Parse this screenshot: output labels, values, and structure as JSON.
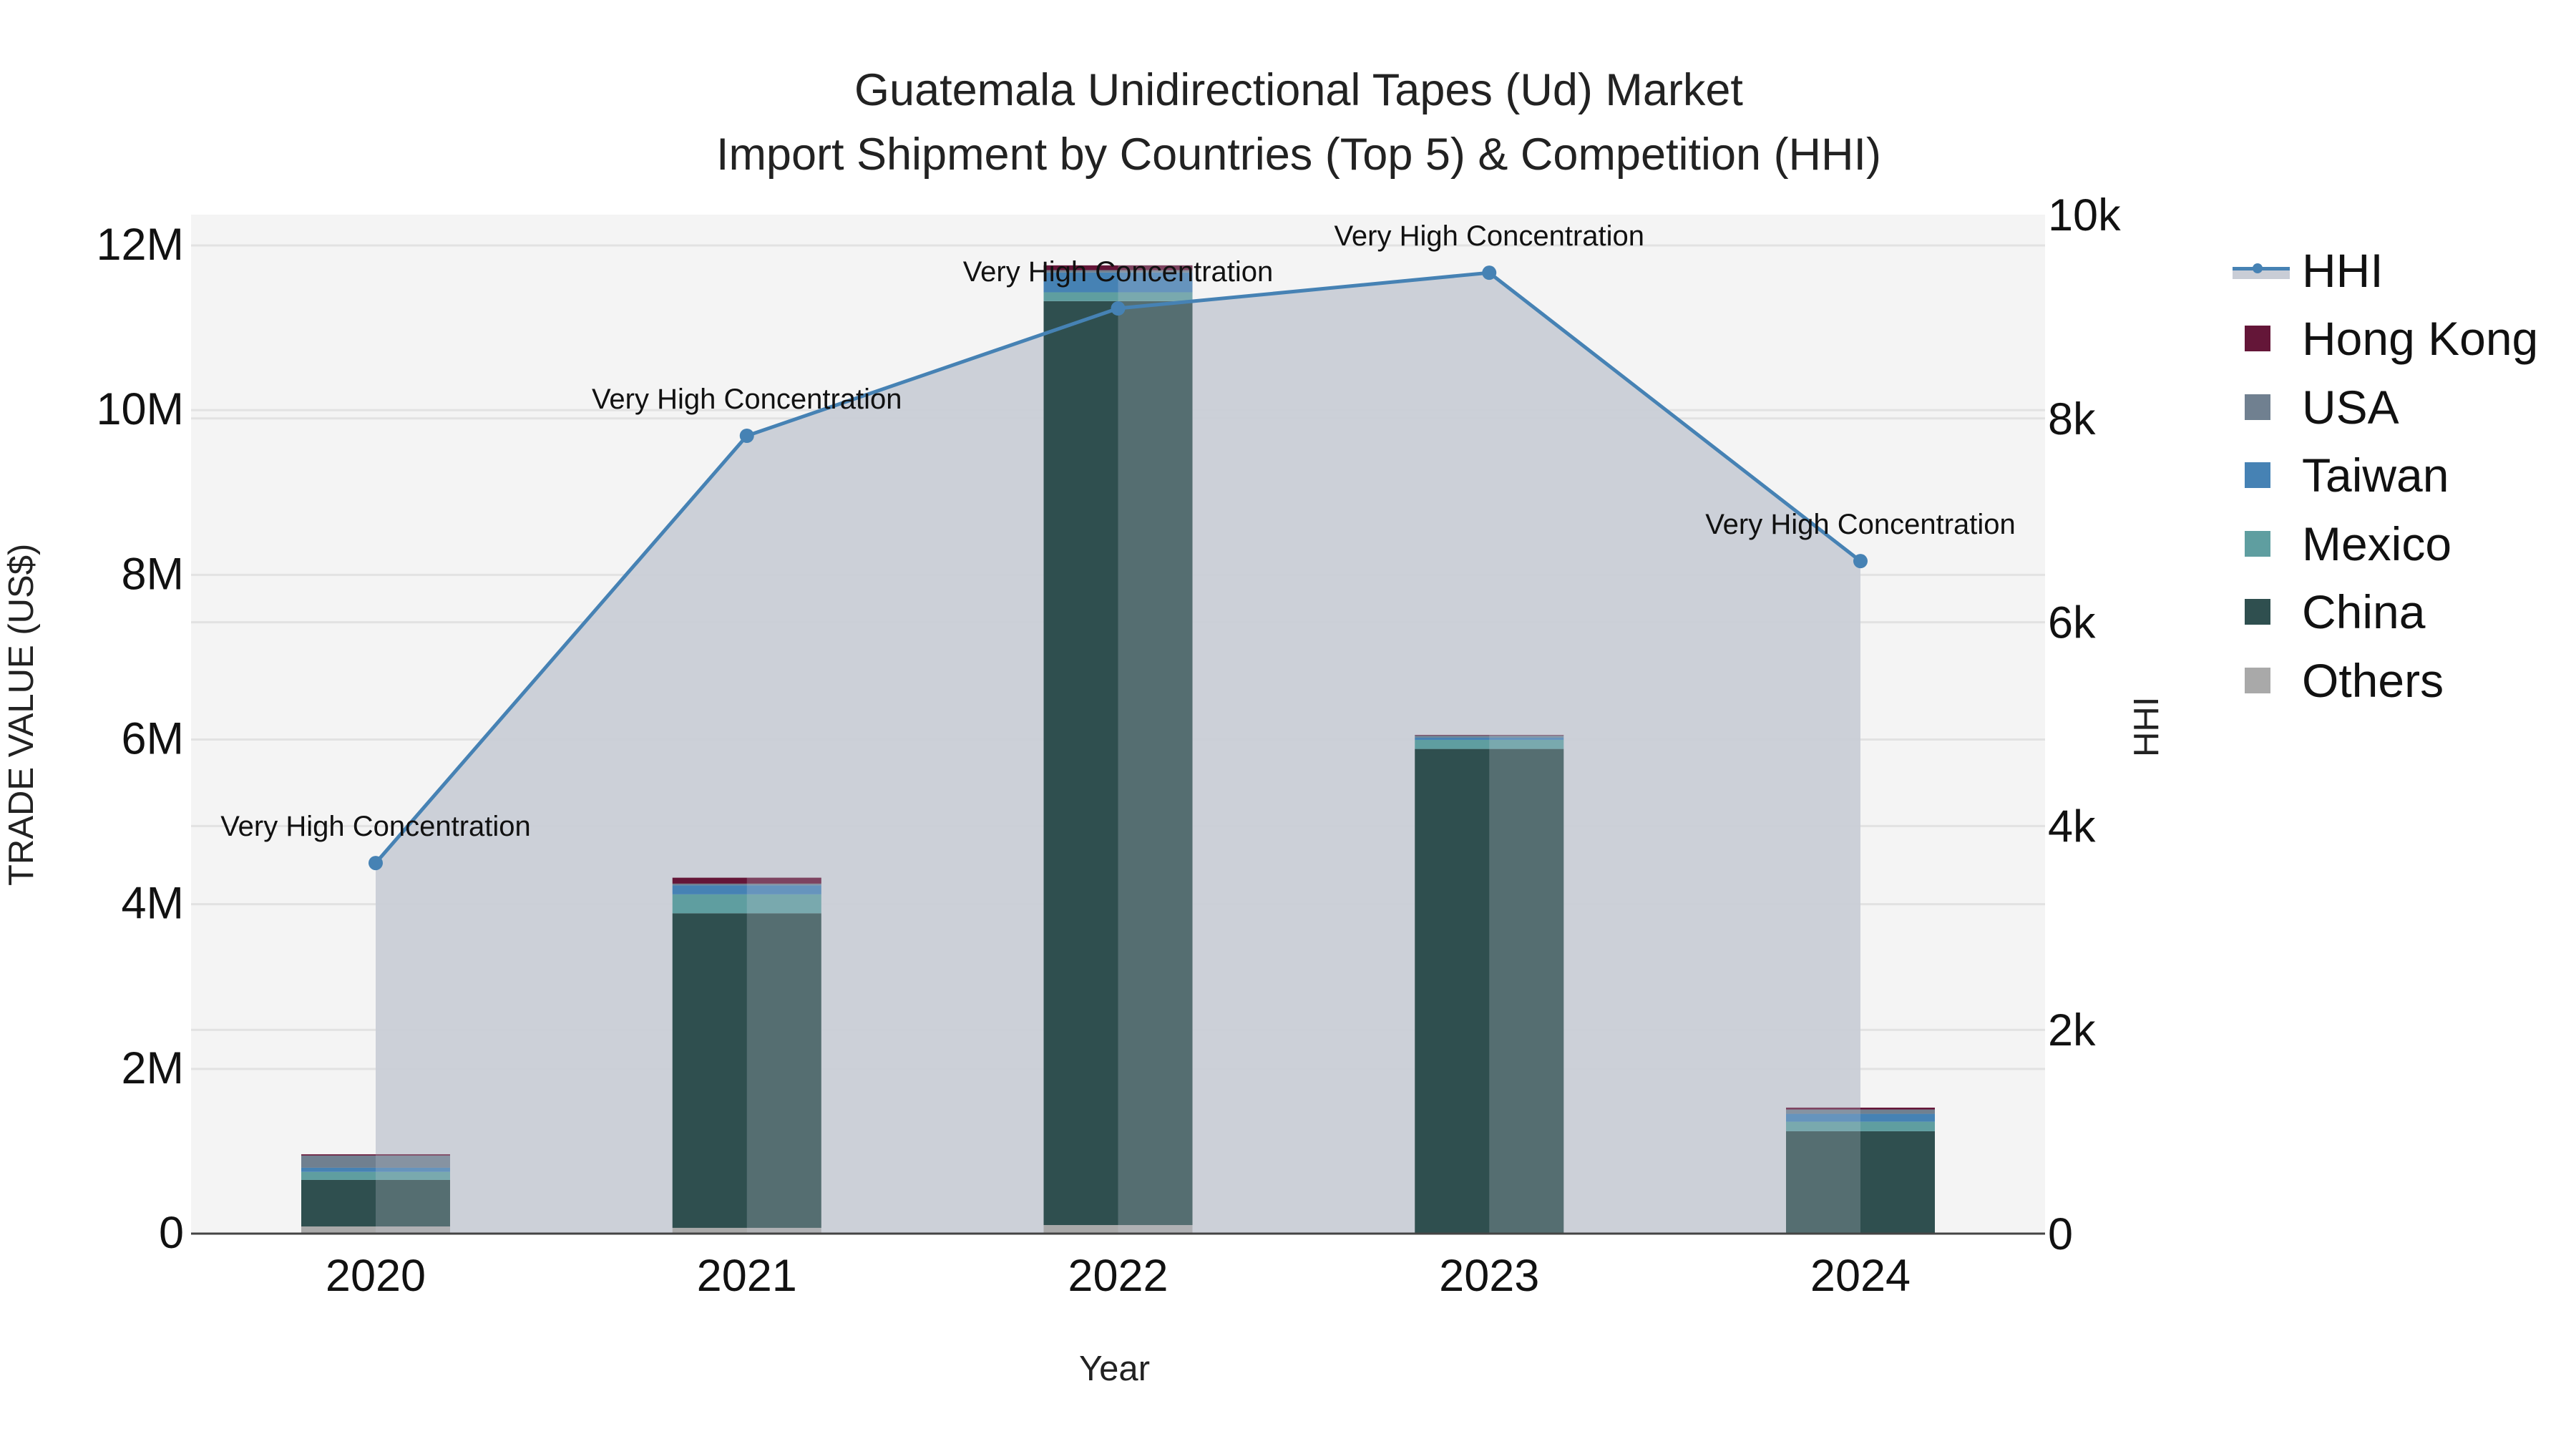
{
  "chart_data": {
    "type": "bar",
    "title": "Guatemala Unidirectional Tapes (Ud) Market",
    "subtitle": "Import Shipment by Countries (Top 5) & Competition (HHI)",
    "xlabel": "Year",
    "ylabel": "TRADE VALUE (US$)",
    "y2label": "HHI",
    "categories": [
      "2020",
      "2021",
      "2022",
      "2023",
      "2024"
    ],
    "ylim": [
      0,
      12400000
    ],
    "y2lim": [
      0,
      10000
    ],
    "yticks": [
      {
        "v": 0,
        "label": "0"
      },
      {
        "v": 2000000,
        "label": "2M"
      },
      {
        "v": 4000000,
        "label": "4M"
      },
      {
        "v": 6000000,
        "label": "6M"
      },
      {
        "v": 8000000,
        "label": "8M"
      },
      {
        "v": 10000000,
        "label": "10M"
      },
      {
        "v": 12000000,
        "label": "12M"
      }
    ],
    "y2ticks": [
      {
        "v": 0,
        "label": "0"
      },
      {
        "v": 2000,
        "label": "2k"
      },
      {
        "v": 4000,
        "label": "4k"
      },
      {
        "v": 6000,
        "label": "6k"
      },
      {
        "v": 8000,
        "label": "8k"
      },
      {
        "v": 10000,
        "label": "10k"
      }
    ],
    "stack_order": [
      "Others",
      "China",
      "Mexico",
      "Taiwan",
      "USA",
      "Hong Kong"
    ],
    "series": [
      {
        "name": "Hong Kong",
        "color": "#641638",
        "values": [
          15000,
          72000,
          58000,
          6000,
          23000
        ]
      },
      {
        "name": "USA",
        "color": "#708090",
        "values": [
          148000,
          20000,
          29000,
          23000,
          52000
        ]
      },
      {
        "name": "Taiwan",
        "color": "#4682b4",
        "values": [
          50000,
          110000,
          240000,
          29000,
          96000
        ]
      },
      {
        "name": "Mexico",
        "color": "#5f9ea0",
        "values": [
          98000,
          230000,
          107000,
          110000,
          116000
        ]
      },
      {
        "name": "China",
        "color": "#2f4f4f",
        "values": [
          565000,
          3820000,
          11220000,
          5880000,
          1240000
        ]
      },
      {
        "name": "Others",
        "color": "#a9a9a9",
        "values": [
          87000,
          70000,
          104000,
          6000,
          3000
        ]
      }
    ],
    "hhi": {
      "name": "HHI",
      "color": "#4682b4",
      "fill": "#c9cdd6",
      "values": [
        3637,
        7830,
        9080,
        9430,
        6600
      ],
      "annotations": [
        "Very High Concentration",
        "Very High Concentration",
        "Very High Concentration",
        "Very High Concentration",
        "Very High Concentration"
      ]
    },
    "legend": [
      "HHI",
      "Hong Kong",
      "USA",
      "Taiwan",
      "Mexico",
      "China",
      "Others"
    ],
    "grid": true,
    "legend_position": "right"
  }
}
